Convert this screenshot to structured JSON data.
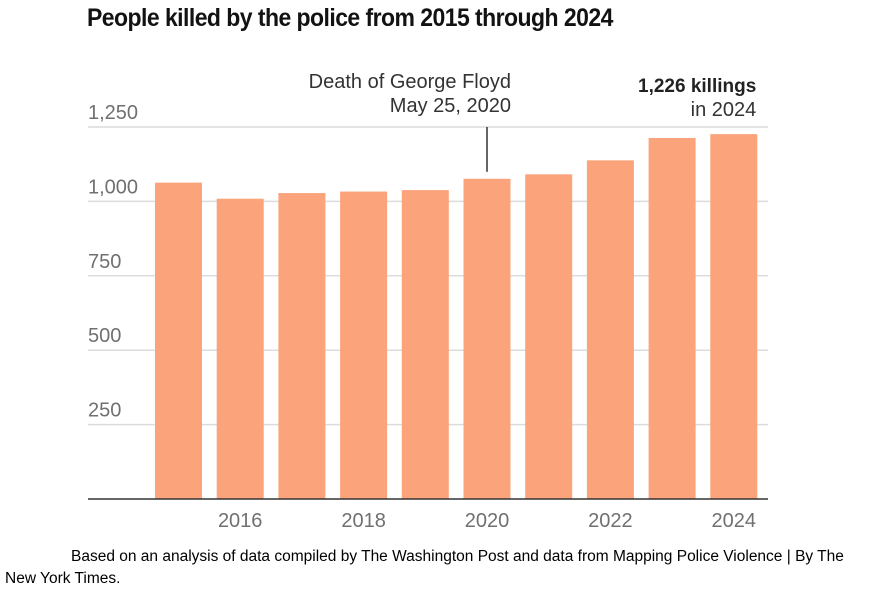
{
  "chart_data": {
    "type": "bar",
    "title": "People killed by the police from 2015 through 2024",
    "xlabel": "",
    "ylabel": "",
    "categories": [
      "2015",
      "2016",
      "2017",
      "2018",
      "2019",
      "2020",
      "2021",
      "2022",
      "2023",
      "2024"
    ],
    "values": [
      1063,
      1009,
      1028,
      1033,
      1038,
      1076,
      1091,
      1138,
      1213,
      1226
    ],
    "ylim": [
      0,
      1250
    ],
    "yticks": [
      {
        "value": 250,
        "label": "250"
      },
      {
        "value": 500,
        "label": "500"
      },
      {
        "value": 750,
        "label": "750"
      },
      {
        "value": 1000,
        "label": "1,000"
      },
      {
        "value": 1250,
        "label": "1,250"
      }
    ],
    "xtick_labels": [
      {
        "category": "2016",
        "label": "2016"
      },
      {
        "category": "2018",
        "label": "2018"
      },
      {
        "category": "2020",
        "label": "2020"
      },
      {
        "category": "2022",
        "label": "2022"
      },
      {
        "category": "2024",
        "label": "2024"
      }
    ],
    "grid": true,
    "bar_color": "#FBA37B",
    "annotations": [
      {
        "category": "2020",
        "lines": [
          "Death of George Floyd",
          "May 25, 2020"
        ],
        "leader_line": true
      },
      {
        "category": "2024",
        "bold": "1,226 killings",
        "text": "in 2024"
      }
    ]
  },
  "caption": "Based on an analysis of data compiled by The Washington Post and data from Mapping Police Violence | By The New York Times."
}
